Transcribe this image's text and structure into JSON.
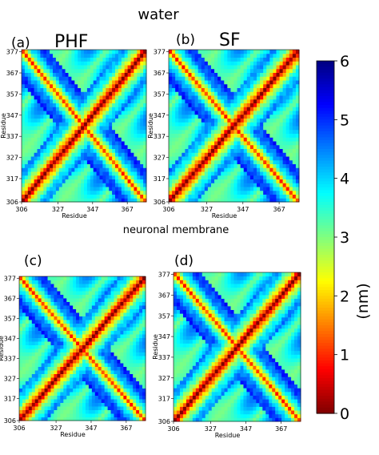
{
  "headings": {
    "top": "water",
    "middle": "neuronal membrane"
  },
  "panels": [
    {
      "label": "(a)",
      "name": "PHF"
    },
    {
      "label": "(b)",
      "name": "SF"
    },
    {
      "label": "(c)",
      "name": ""
    },
    {
      "label": "(d)",
      "name": ""
    }
  ],
  "colors": {
    "near": "#8b0000",
    "far": "#00008b",
    "colormap": "jet_r"
  },
  "chart_data": [
    {
      "type": "heatmap",
      "panel": "(a)",
      "subtitle": "PHF",
      "condition": "water",
      "xlabel": "Residue",
      "ylabel": "Residue",
      "xticks": [
        306,
        327,
        347,
        367
      ],
      "yticks": [
        306,
        317,
        327,
        337,
        347,
        357,
        367,
        377
      ],
      "range": [
        306,
        378
      ]
    },
    {
      "type": "heatmap",
      "panel": "(b)",
      "subtitle": "SF",
      "condition": "water",
      "xlabel": "Residue",
      "ylabel": "Residue",
      "xticks": [
        306,
        327,
        347,
        367
      ],
      "yticks": [
        306,
        317,
        327,
        337,
        347,
        357,
        367,
        377
      ],
      "range": [
        306,
        378
      ]
    },
    {
      "type": "heatmap",
      "panel": "(c)",
      "subtitle": "",
      "condition": "neuronal membrane",
      "xlabel": "Residue",
      "ylabel": "Residue",
      "xticks": [
        306,
        327,
        347,
        367
      ],
      "yticks": [
        306,
        317,
        327,
        337,
        347,
        357,
        367,
        377
      ],
      "range": [
        306,
        378
      ]
    },
    {
      "type": "heatmap",
      "panel": "(d)",
      "subtitle": "",
      "condition": "neuronal membrane",
      "xlabel": "Residue",
      "ylabel": "Residue",
      "xticks": [
        306,
        327,
        347,
        367
      ],
      "yticks": [
        306,
        317,
        327,
        337,
        347,
        357,
        367,
        377
      ],
      "range": [
        306,
        378
      ]
    }
  ],
  "colorbar": {
    "label": "(nm)",
    "min": 0,
    "max": 6,
    "ticks": [
      0,
      1,
      2,
      3,
      4,
      5,
      6
    ]
  }
}
